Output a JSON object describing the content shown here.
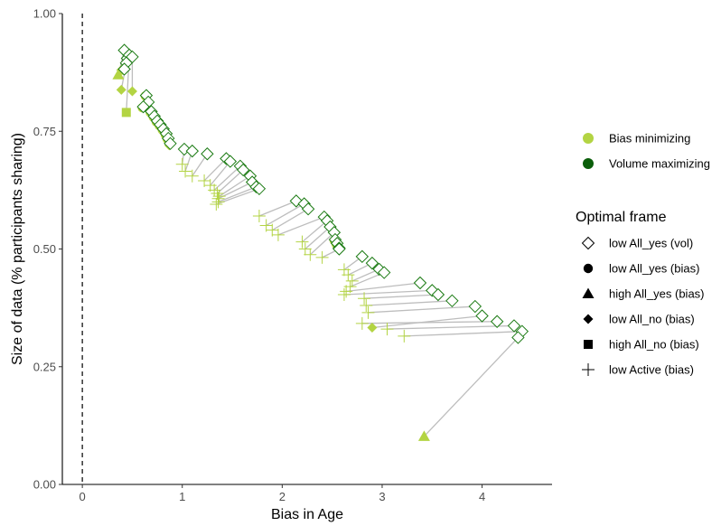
{
  "colors": {
    "bias_minimizing": "#b3d443",
    "volume_maximizing": "#1a7a12",
    "volume_maximizing_legend": "#0b5e0a",
    "connector": "#bdbdbd",
    "axis": "#000000",
    "reference_line": "#000000"
  },
  "chart_data": {
    "type": "scatter",
    "xlabel": "Bias in Age",
    "ylabel": "Size of data (% participants sharing)",
    "xlim": [
      -0.2,
      4.7
    ],
    "ylim": [
      0,
      1
    ],
    "x_ticks": [
      0,
      1,
      2,
      3,
      4
    ],
    "x_tick_labels": [
      "0",
      "1",
      "2",
      "3",
      "4"
    ],
    "y_ticks": [
      0,
      0.25,
      0.5,
      0.75,
      1
    ],
    "y_tick_labels": [
      "0.00",
      "0.25",
      "0.50",
      "0.75",
      "1.00"
    ],
    "grid": false,
    "reference_line": {
      "x": 0,
      "style": "dashed"
    },
    "legend_position": "right",
    "color_legend": {
      "entries": [
        {
          "key": "bias",
          "label": "Bias minimizing"
        },
        {
          "key": "vol",
          "label": "Volume maximizing"
        }
      ]
    },
    "shape_legend": {
      "title": "Optimal frame",
      "entries": [
        {
          "shape": "diamond-open",
          "label": "low All_yes (vol)"
        },
        {
          "shape": "circle",
          "label": "low All_yes (bias)"
        },
        {
          "shape": "triangle",
          "label": "high All_yes (bias)"
        },
        {
          "shape": "diamond",
          "label": "low All_no (bias)"
        },
        {
          "shape": "square",
          "label": "high All_no (bias)"
        },
        {
          "shape": "cross",
          "label": "low Active (bias)"
        }
      ]
    },
    "pairs": [
      {
        "vol": [
          0.42,
          0.922
        ],
        "bias": [
          0.36,
          0.87
        ],
        "shape": "triangle"
      },
      {
        "vol": [
          0.45,
          0.905
        ],
        "bias": [
          0.39,
          0.88
        ],
        "shape": "diamond"
      },
      {
        "vol": [
          0.47,
          0.912
        ],
        "bias": [
          0.44,
          0.79
        ],
        "shape": "square"
      },
      {
        "vol": [
          0.5,
          0.908
        ],
        "bias": [
          0.5,
          0.835
        ],
        "shape": "diamond"
      },
      {
        "vol": [
          0.44,
          0.895
        ],
        "bias": [
          0.39,
          0.838
        ],
        "shape": "diamond"
      },
      {
        "vol": [
          0.42,
          0.882
        ],
        "bias": [
          0.41,
          0.88
        ],
        "shape": "circle"
      },
      {
        "vol": [
          0.64,
          0.826
        ],
        "bias": [
          0.63,
          0.825
        ],
        "shape": "circle"
      },
      {
        "vol": [
          0.66,
          0.812
        ],
        "bias": [
          0.65,
          0.81
        ],
        "shape": "circle"
      },
      {
        "vol": [
          0.61,
          0.802
        ],
        "bias": [
          0.6,
          0.8
        ],
        "shape": "circle"
      },
      {
        "vol": [
          0.69,
          0.792
        ],
        "bias": [
          0.68,
          0.79
        ],
        "shape": "circle"
      },
      {
        "vol": [
          0.72,
          0.782
        ],
        "bias": [
          0.71,
          0.78
        ],
        "shape": "circle"
      },
      {
        "vol": [
          0.75,
          0.772
        ],
        "bias": [
          0.74,
          0.77
        ],
        "shape": "circle"
      },
      {
        "vol": [
          0.78,
          0.764
        ],
        "bias": [
          0.77,
          0.762
        ],
        "shape": "circle"
      },
      {
        "vol": [
          0.81,
          0.755
        ],
        "bias": [
          0.8,
          0.753
        ],
        "shape": "circle"
      },
      {
        "vol": [
          0.84,
          0.745
        ],
        "bias": [
          0.83,
          0.743
        ],
        "shape": "circle"
      },
      {
        "vol": [
          0.86,
          0.735
        ],
        "bias": [
          0.85,
          0.733
        ],
        "shape": "circle"
      },
      {
        "vol": [
          0.88,
          0.724
        ],
        "bias": [
          0.87,
          0.72
        ],
        "shape": "diamond"
      },
      {
        "vol": [
          1.02,
          0.712
        ],
        "bias": [
          1.0,
          0.68
        ],
        "shape": "cross"
      },
      {
        "vol": [
          1.1,
          0.708
        ],
        "bias": [
          1.03,
          0.665
        ],
        "shape": "cross"
      },
      {
        "vol": [
          1.25,
          0.702
        ],
        "bias": [
          1.1,
          0.655
        ],
        "shape": "cross"
      },
      {
        "vol": [
          1.44,
          0.692
        ],
        "bias": [
          1.22,
          0.645
        ],
        "shape": "cross"
      },
      {
        "vol": [
          1.48,
          0.686
        ],
        "bias": [
          1.28,
          0.635
        ],
        "shape": "cross"
      },
      {
        "vol": [
          1.58,
          0.676
        ],
        "bias": [
          1.32,
          0.625
        ],
        "shape": "cross"
      },
      {
        "vol": [
          1.61,
          0.668
        ],
        "bias": [
          1.35,
          0.618
        ],
        "shape": "cross"
      },
      {
        "vol": [
          1.68,
          0.655
        ],
        "bias": [
          1.37,
          0.612
        ],
        "shape": "cross"
      },
      {
        "vol": [
          1.7,
          0.642
        ],
        "bias": [
          1.36,
          0.607
        ],
        "shape": "cross"
      },
      {
        "vol": [
          1.74,
          0.632
        ],
        "bias": [
          1.36,
          0.6
        ],
        "shape": "cross"
      },
      {
        "vol": [
          1.77,
          0.628
        ],
        "bias": [
          1.34,
          0.595
        ],
        "shape": "cross"
      },
      {
        "vol": [
          2.14,
          0.602
        ],
        "bias": [
          1.77,
          0.57
        ],
        "shape": "cross"
      },
      {
        "vol": [
          2.22,
          0.596
        ],
        "bias": [
          1.84,
          0.55
        ],
        "shape": "cross"
      },
      {
        "vol": [
          2.26,
          0.585
        ],
        "bias": [
          1.9,
          0.54
        ],
        "shape": "cross"
      },
      {
        "vol": [
          2.42,
          0.568
        ],
        "bias": [
          1.96,
          0.53
        ],
        "shape": "cross"
      },
      {
        "vol": [
          2.45,
          0.56
        ],
        "bias": [
          2.2,
          0.515
        ],
        "shape": "cross"
      },
      {
        "vol": [
          2.48,
          0.547
        ],
        "bias": [
          2.23,
          0.5
        ],
        "shape": "cross"
      },
      {
        "vol": [
          2.52,
          0.535
        ],
        "bias": [
          2.28,
          0.488
        ],
        "shape": "cross"
      },
      {
        "vol": [
          2.53,
          0.52
        ],
        "bias": [
          2.52,
          0.518
        ],
        "shape": "circle"
      },
      {
        "vol": [
          2.55,
          0.512
        ],
        "bias": [
          2.54,
          0.51
        ],
        "shape": "circle"
      },
      {
        "vol": [
          2.57,
          0.502
        ],
        "bias": [
          2.56,
          0.5
        ],
        "shape": "diamond"
      },
      {
        "vol": [
          2.57,
          0.5
        ],
        "bias": [
          2.4,
          0.482
        ],
        "shape": "cross"
      },
      {
        "vol": [
          2.8,
          0.484
        ],
        "bias": [
          2.62,
          0.456
        ],
        "shape": "cross"
      },
      {
        "vol": [
          2.9,
          0.47
        ],
        "bias": [
          2.66,
          0.445
        ],
        "shape": "cross"
      },
      {
        "vol": [
          2.97,
          0.457
        ],
        "bias": [
          2.7,
          0.432
        ],
        "shape": "cross"
      },
      {
        "vol": [
          3.02,
          0.45
        ],
        "bias": [
          2.68,
          0.42
        ],
        "shape": "cross"
      },
      {
        "vol": [
          3.38,
          0.428
        ],
        "bias": [
          2.64,
          0.41
        ],
        "shape": "cross"
      },
      {
        "vol": [
          3.5,
          0.412
        ],
        "bias": [
          2.62,
          0.403
        ],
        "shape": "cross"
      },
      {
        "vol": [
          3.56,
          0.403
        ],
        "bias": [
          2.82,
          0.395
        ],
        "shape": "cross"
      },
      {
        "vol": [
          3.7,
          0.39
        ],
        "bias": [
          2.84,
          0.38
        ],
        "shape": "cross"
      },
      {
        "vol": [
          3.93,
          0.378
        ],
        "bias": [
          2.86,
          0.365
        ],
        "shape": "cross"
      },
      {
        "vol": [
          4.0,
          0.358
        ],
        "bias": [
          2.9,
          0.333
        ],
        "shape": "diamond"
      },
      {
        "vol": [
          4.15,
          0.346
        ],
        "bias": [
          2.8,
          0.342
        ],
        "shape": "cross"
      },
      {
        "vol": [
          4.32,
          0.337
        ],
        "bias": [
          3.05,
          0.33
        ],
        "shape": "cross"
      },
      {
        "vol": [
          4.4,
          0.325
        ],
        "bias": [
          3.22,
          0.315
        ],
        "shape": "cross"
      },
      {
        "vol": [
          4.36,
          0.312
        ],
        "bias": [
          3.42,
          0.102
        ],
        "shape": "triangle"
      }
    ]
  }
}
